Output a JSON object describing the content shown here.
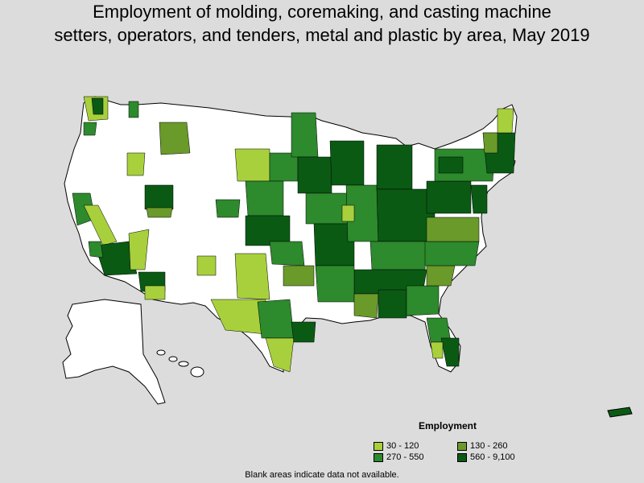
{
  "title_line1": "Employment of molding, coremaking, and casting machine",
  "title_line2": "setters, operators, and tenders, metal and plastic by area, May 2019",
  "legend": {
    "title": "Employment",
    "items": [
      {
        "label": "30 - 120",
        "color": "#a8d03c"
      },
      {
        "label": "130 - 260",
        "color": "#6a9a2a"
      },
      {
        "label": "270 - 550",
        "color": "#2d8a2d"
      },
      {
        "label": "560 - 9,100",
        "color": "#0a5a14"
      }
    ]
  },
  "note": "Blank areas indicate data not available.",
  "colors": {
    "background": "#dcdcdc",
    "nodata": "#ffffff",
    "border": "#000000"
  }
}
